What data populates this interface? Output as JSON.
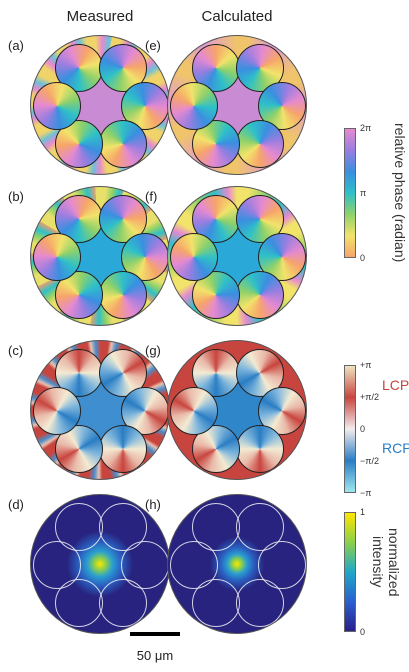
{
  "columns": [
    "Measured",
    "Calculated"
  ],
  "panels": [
    "(a)",
    "(b)",
    "(c)",
    "(d)",
    "(e)",
    "(f)",
    "(g)",
    "(h)"
  ],
  "colorbars": [
    {
      "label": "relative phase (radian)",
      "ticks": [
        "2π",
        "π",
        "0"
      ]
    },
    {
      "labels": [
        "LCP",
        "RCP"
      ],
      "ticks": [
        "+π",
        "+π/2",
        "0",
        "−π/2",
        "−π"
      ]
    },
    {
      "label": [
        "normalized",
        "intensity"
      ],
      "ticks": [
        "1",
        "0"
      ]
    }
  ],
  "scale_bar": "50 μm"
}
